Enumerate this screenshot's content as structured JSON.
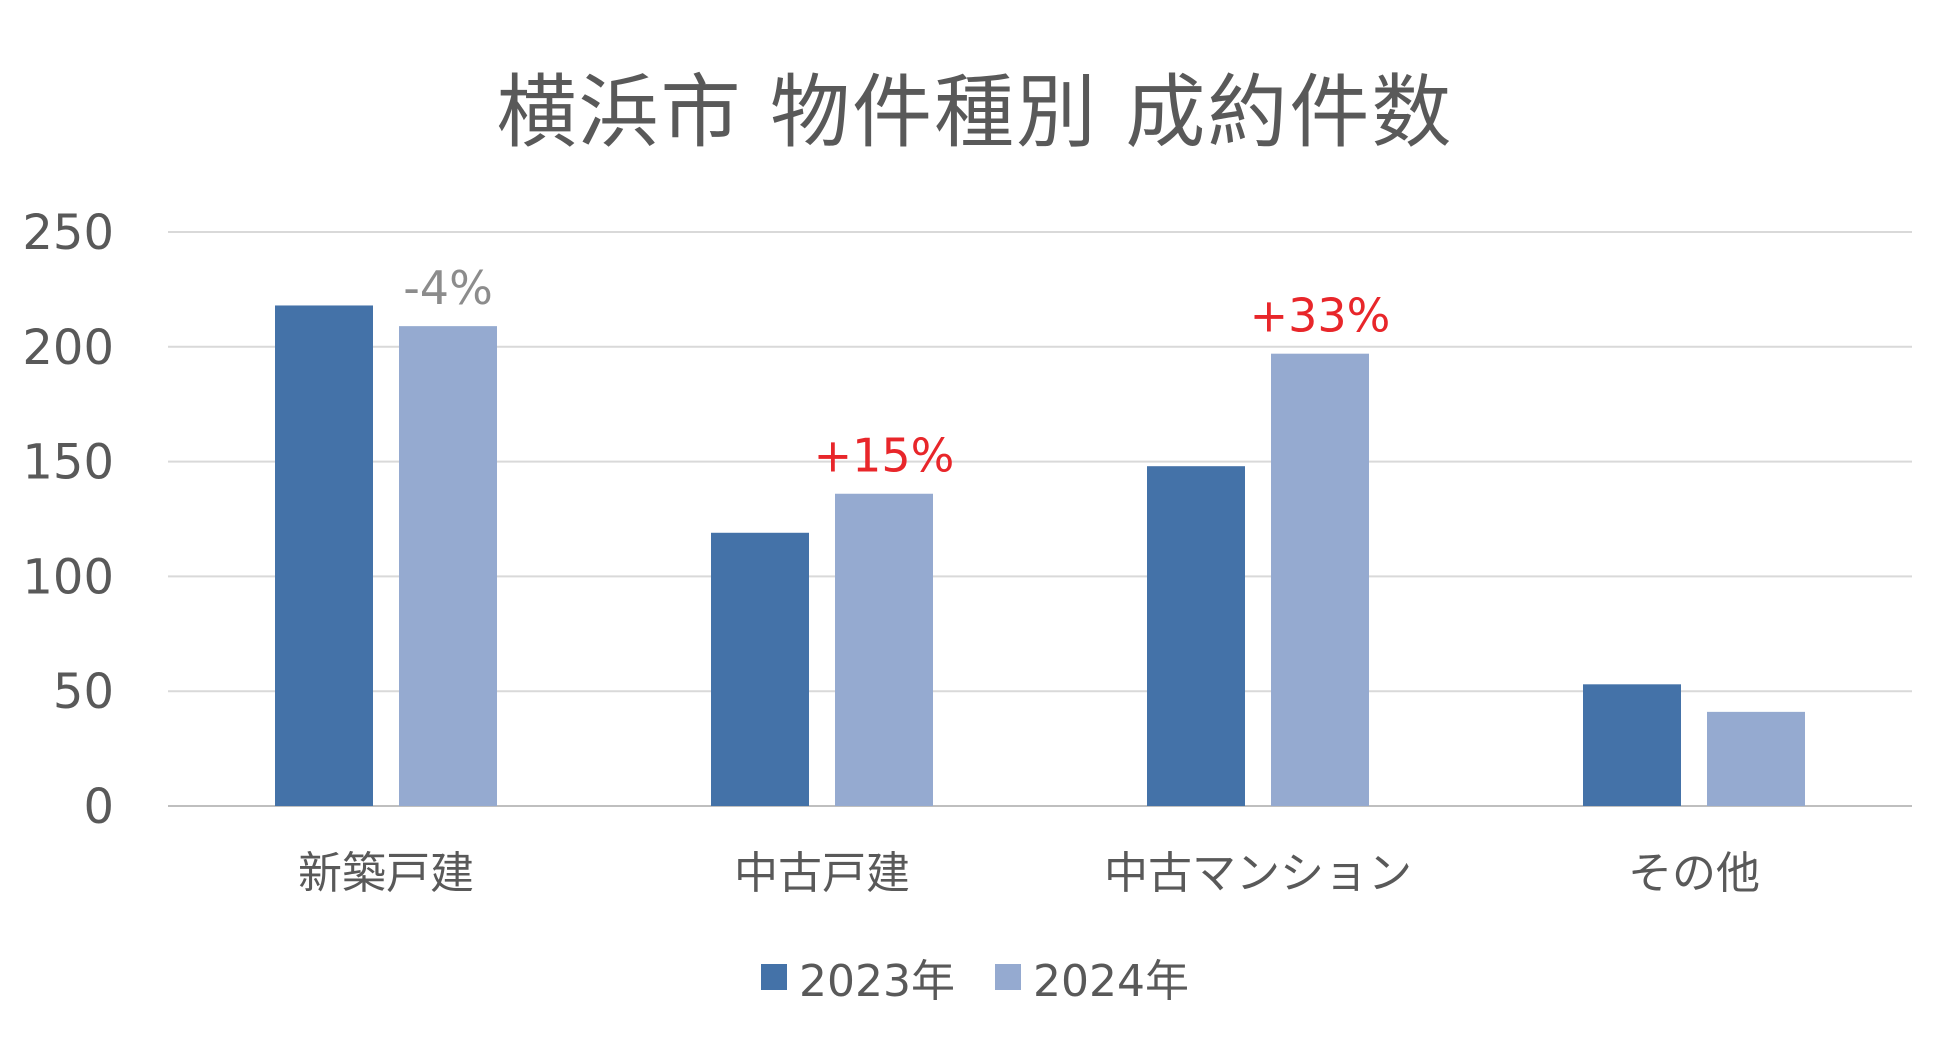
{
  "chart_data": {
    "type": "bar",
    "title": "横浜市 物件種別 成約件数",
    "categories": [
      "新築戸建",
      "中古戸建",
      "中古マンション",
      "その他"
    ],
    "series": [
      {
        "name": "2023年",
        "color": "#4472a8",
        "values": [
          218,
          119,
          148,
          53
        ]
      },
      {
        "name": "2024年",
        "color": "#95aad0",
        "values": [
          209,
          136,
          197,
          41
        ]
      }
    ],
    "ylim": [
      0,
      250
    ],
    "yticks": [
      0,
      50,
      100,
      150,
      200,
      250
    ],
    "grid": true,
    "legend_position": "bottom",
    "annotations": [
      {
        "category_index": 0,
        "text": "-4%",
        "color": "#8c8c8c"
      },
      {
        "category_index": 1,
        "text": "+15%",
        "color": "#e8262a"
      },
      {
        "category_index": 2,
        "text": "+33%",
        "color": "#e8262a"
      }
    ]
  }
}
